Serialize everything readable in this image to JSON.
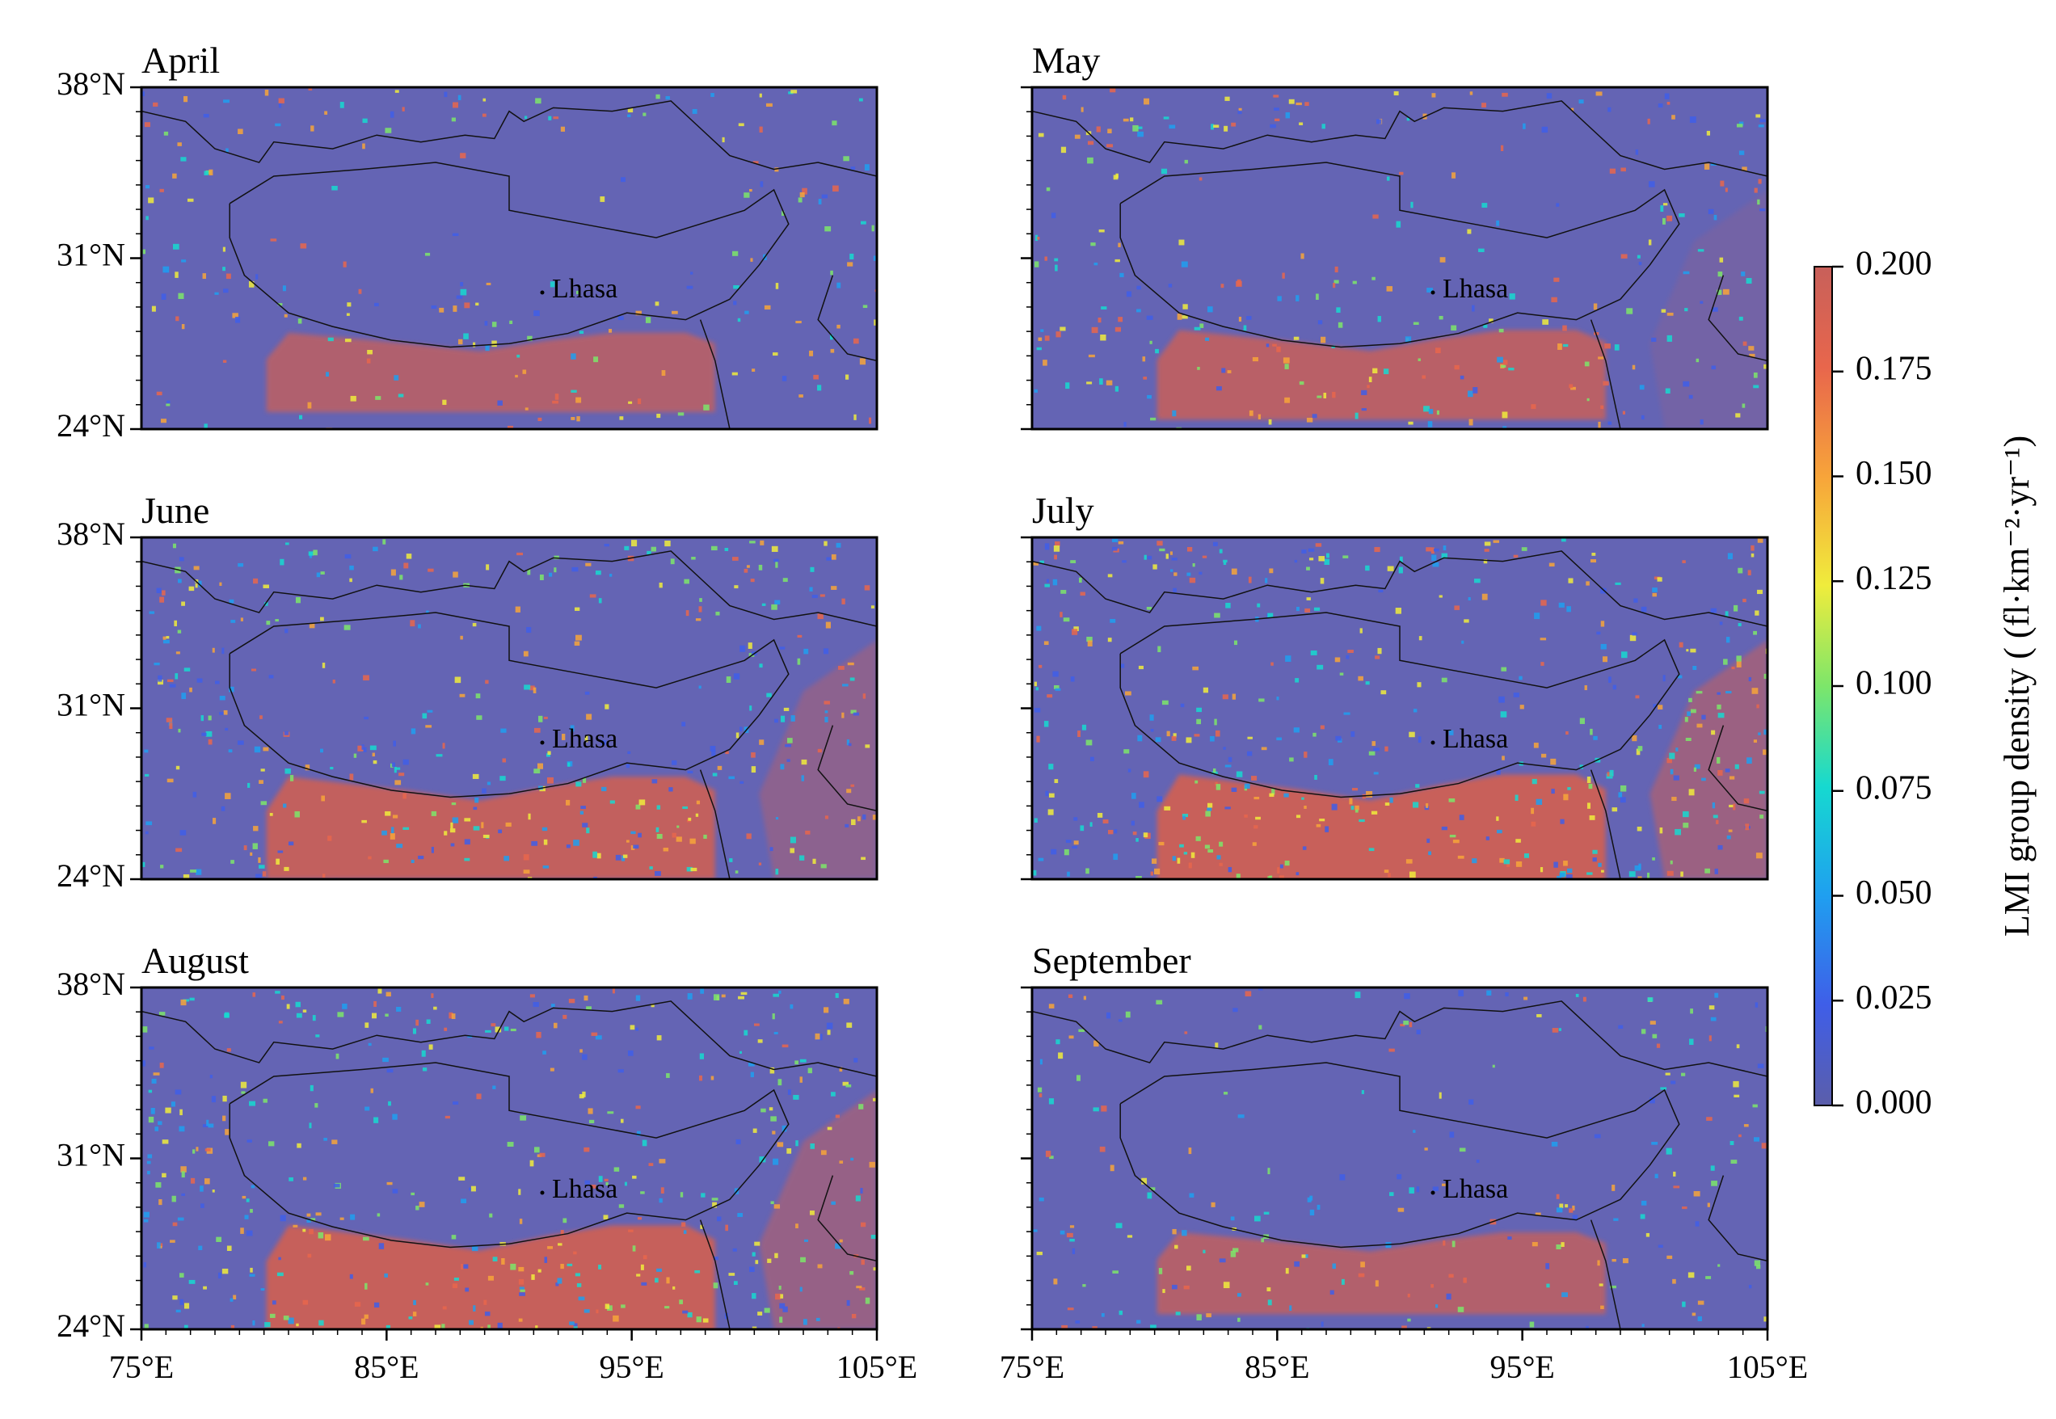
{
  "figure": {
    "panels": [
      {
        "title": "April",
        "intensity": 0.55
      },
      {
        "title": "May",
        "intensity": 0.75
      },
      {
        "title": "June",
        "intensity": 1.0
      },
      {
        "title": "July",
        "intensity": 1.15
      },
      {
        "title": "August",
        "intensity": 1.1
      },
      {
        "title": "September",
        "intensity": 0.6
      }
    ],
    "city_label": "Lhasa",
    "lat_ticks": [
      "38°N",
      "31°N",
      "24°N"
    ],
    "lon_ticks": [
      "75°E",
      "85°E",
      "95°E",
      "105°E"
    ]
  },
  "colorbar": {
    "label": "LMI group density ( (fl·km⁻²·yr⁻¹)",
    "ticks": [
      "0.200",
      "0.175",
      "0.150",
      "0.125",
      "0.100",
      "0.075",
      "0.050",
      "0.025",
      "0.000"
    ],
    "colors": [
      "#5b5eaa",
      "#3f5ee8",
      "#1f9ff0",
      "#16d9d0",
      "#7de66a",
      "#f0ec3c",
      "#f7a43a",
      "#e8664c",
      "#c8605a"
    ]
  },
  "map_colors": {
    "background": "#6464b4",
    "saturated": "#c8605a"
  }
}
